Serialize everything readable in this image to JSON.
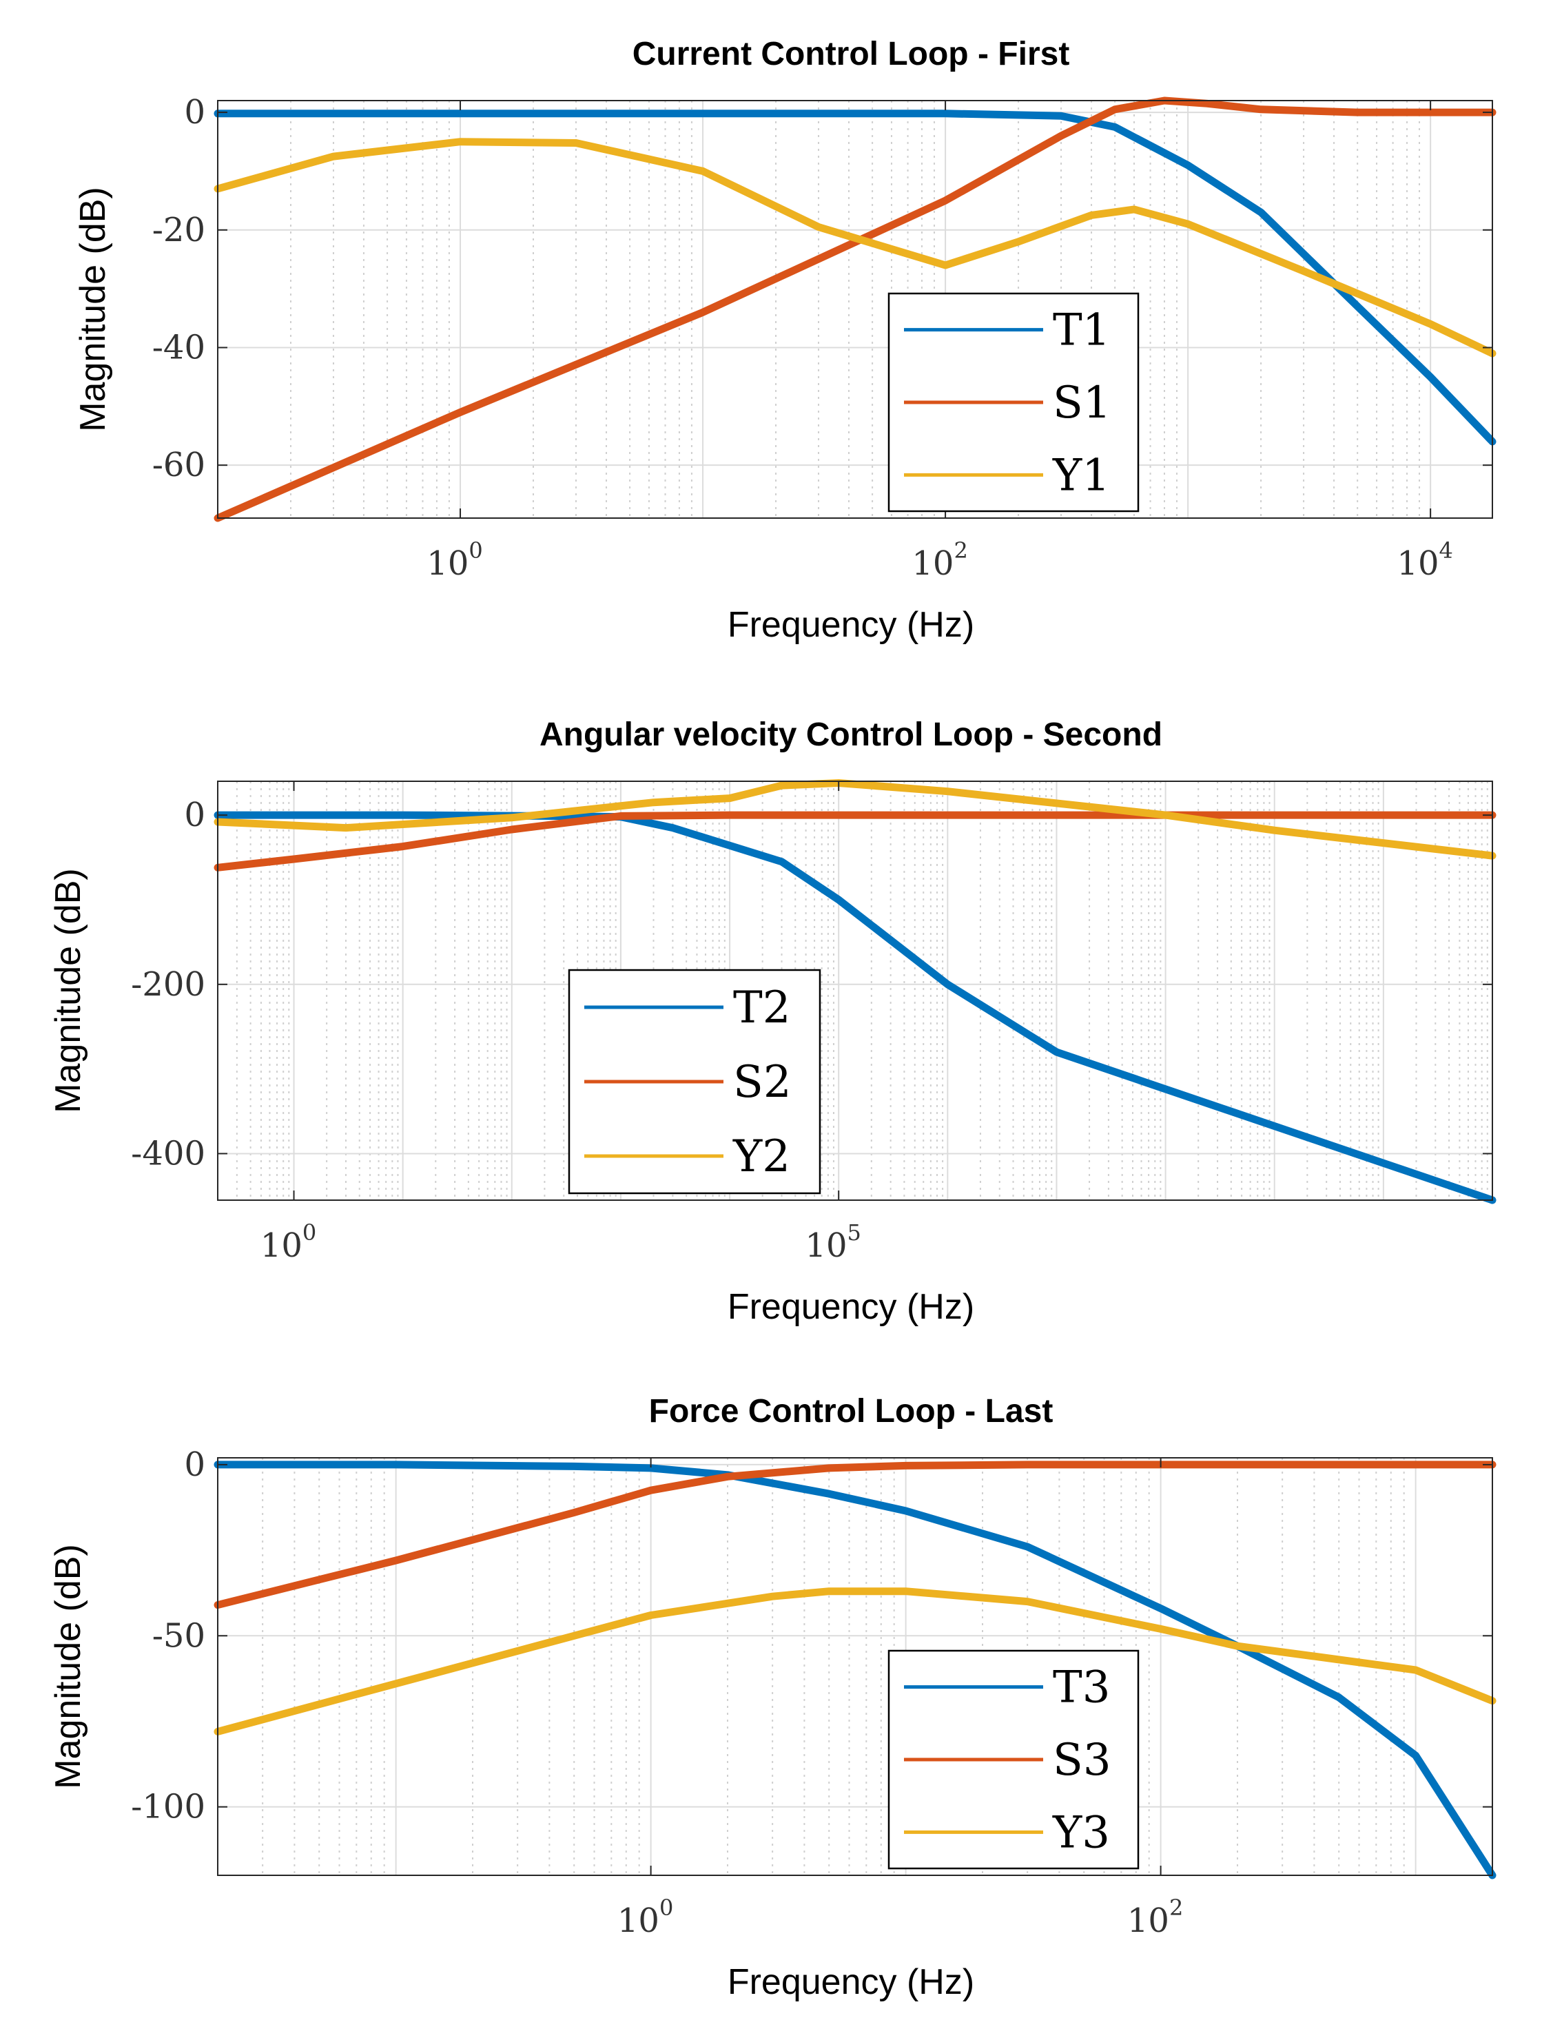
{
  "chart_data": [
    {
      "type": "line",
      "title": "Current Control Loop - First",
      "xlabel": "Frequency  (Hz)",
      "ylabel": "Magnitude (dB)",
      "xscale": "log",
      "xlim": [
        0.1,
        18000
      ],
      "ylim": [
        -69,
        2
      ],
      "yticks": [
        0,
        -20,
        -40,
        -60
      ],
      "ytick_labels": [
        "0",
        "-20",
        "-40",
        "-60"
      ],
      "xtick_decades": [
        0,
        2,
        4
      ],
      "xtick_labels": [
        "10",
        "10",
        "10"
      ],
      "xtick_exponents": [
        "0",
        "2",
        "4"
      ],
      "grid": true,
      "legend_position": "center-right",
      "series": [
        {
          "name": "T1",
          "color": "#0072BD",
          "x": [
            0.1,
            1,
            10,
            100,
            300,
            500,
            1000,
            2000,
            5000,
            10000,
            18000
          ],
          "y": [
            -0.2,
            -0.2,
            -0.2,
            -0.2,
            -0.6,
            -2.5,
            -9,
            -17,
            -33,
            -45,
            -56
          ]
        },
        {
          "name": "S1",
          "color": "#D95319",
          "x": [
            0.1,
            1,
            10,
            100,
            300,
            500,
            800,
            1200,
            2000,
            5000,
            18000
          ],
          "y": [
            -69,
            -51,
            -34,
            -15,
            -4,
            0.5,
            2,
            1.5,
            0.5,
            0,
            0
          ]
        },
        {
          "name": "Y1",
          "color": "#EDB120",
          "x": [
            0.1,
            0.3,
            1,
            3,
            10,
            30,
            100,
            200,
            400,
            600,
            1000,
            3000,
            10000,
            18000
          ],
          "y": [
            -13,
            -7.5,
            -5,
            -5.2,
            -10,
            -19.5,
            -26,
            -22,
            -17.5,
            -16.5,
            -19,
            -27,
            -36,
            -41
          ]
        }
      ]
    },
    {
      "type": "line",
      "title": "Angular velocity Control Loop - Second",
      "xlabel": "Frequency  (Hz)",
      "ylabel": "Magnitude (dB)",
      "xscale": "log",
      "xlim": [
        0.2,
        100000000000.0
      ],
      "ylim": [
        -455,
        40
      ],
      "yticks": [
        0,
        -200,
        -400
      ],
      "ytick_labels": [
        "0",
        "-200",
        "-400"
      ],
      "xtick_decades": [
        0,
        5
      ],
      "xtick_labels": [
        "10",
        "10"
      ],
      "xtick_exponents": [
        "0",
        "5"
      ],
      "grid": true,
      "legend_position": "center-left",
      "series": [
        {
          "name": "T2",
          "color": "#0072BD",
          "x": [
            0.2,
            10,
            200,
            1000,
            3000,
            30000,
            100000,
            1000000,
            10000000,
            100000000000.0
          ],
          "y": [
            0,
            0,
            -1,
            -2,
            -15,
            -55,
            -100,
            -200,
            -280,
            -455
          ]
        },
        {
          "name": "S2",
          "color": "#D95319",
          "x": [
            0.2,
            1,
            10,
            100,
            1000,
            10000,
            100000000000.0
          ],
          "y": [
            -62,
            -52,
            -37,
            -17,
            -1,
            0,
            0
          ]
        },
        {
          "name": "Y2",
          "color": "#EDB120",
          "x": [
            0.2,
            3,
            100,
            2000,
            10000,
            30000,
            100000,
            1000000,
            100000000.0,
            1000000000.0,
            100000000000.0
          ],
          "y": [
            -8,
            -15,
            -3,
            15,
            20,
            35,
            38,
            28,
            0,
            -18,
            -48
          ]
        }
      ]
    },
    {
      "type": "line",
      "title": "Force Control Loop - Last",
      "xlabel": "Frequency  (Hz)",
      "ylabel": "Magnitude (dB)",
      "xscale": "log",
      "xlim": [
        0.02,
        2000
      ],
      "ylim": [
        -120,
        2
      ],
      "yticks": [
        0,
        -50,
        -100
      ],
      "ytick_labels": [
        "0",
        "-50",
        "-100"
      ],
      "xtick_decades": [
        0,
        2
      ],
      "xtick_labels": [
        "10",
        "10"
      ],
      "xtick_exponents": [
        "0",
        "2"
      ],
      "grid": true,
      "legend_position": "center-right",
      "series": [
        {
          "name": "T3",
          "color": "#0072BD",
          "x": [
            0.02,
            0.1,
            0.5,
            1,
            2,
            5,
            10,
            30,
            100,
            200,
            500,
            1000,
            2000
          ],
          "y": [
            0,
            0,
            -0.5,
            -1,
            -3,
            -8.5,
            -13.5,
            -24,
            -42,
            -53,
            -68,
            -85,
            -120
          ]
        },
        {
          "name": "S3",
          "color": "#D95319",
          "x": [
            0.02,
            0.1,
            0.5,
            1,
            2,
            5,
            10,
            30,
            100,
            2000
          ],
          "y": [
            -41,
            -28,
            -14,
            -7.5,
            -3.5,
            -1,
            -0.3,
            0,
            0,
            0
          ]
        },
        {
          "name": "Y3",
          "color": "#EDB120",
          "x": [
            0.02,
            0.1,
            0.5,
            1,
            3,
            5,
            10,
            30,
            100,
            200,
            400,
            1000,
            2000
          ],
          "y": [
            -78,
            -64,
            -50,
            -44,
            -38.5,
            -37,
            -37,
            -40,
            -48,
            -53,
            -56,
            -60,
            -69
          ]
        }
      ]
    }
  ]
}
